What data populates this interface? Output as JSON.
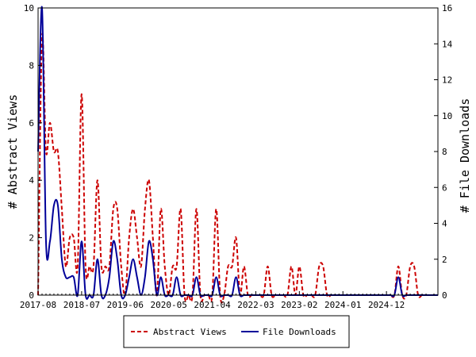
{
  "colors": {
    "background": "#ffffff",
    "axis": "#000000",
    "abstract_views": "#cc0000",
    "file_downloads": "#000099"
  },
  "chart_data": {
    "type": "line",
    "title": "",
    "xlabel": "",
    "ylabel_left": "# Abstract Views",
    "ylabel_right": "# File Downloads",
    "x_ticks": [
      "2017-08",
      "2018-07",
      "2019-06",
      "2020-05",
      "2021-04",
      "2022-03",
      "2023-02",
      "2024-01",
      "2024-12"
    ],
    "x_start": "2017-08",
    "months_per_tick": 11,
    "x_range_months": 101,
    "y_left_ticks": [
      "0",
      "2",
      "4",
      "6",
      "8",
      "10"
    ],
    "y_right_ticks": [
      "0",
      "2",
      "4",
      "6",
      "8",
      "10",
      "12",
      "14",
      "16"
    ],
    "ylim_left": [
      0,
      10
    ],
    "ylim_right": [
      0,
      16
    ],
    "grid": false,
    "legend_position": "bottom-center",
    "series": [
      {
        "name": "Abstract Views",
        "axis": "left",
        "style": "dashed",
        "values": [
          0,
          9,
          5,
          6,
          5,
          5,
          3,
          1,
          2,
          2,
          1,
          7,
          1,
          1,
          1,
          4,
          1,
          1,
          1,
          3,
          3,
          1,
          0,
          2,
          3,
          2,
          1,
          3,
          4,
          2,
          0,
          3,
          1,
          0,
          1,
          1,
          3,
          0,
          0,
          0,
          3,
          0,
          0,
          0,
          0,
          3,
          0,
          0,
          1,
          1,
          2,
          0,
          1,
          0,
          0,
          0,
          0,
          0,
          1,
          0,
          0,
          0,
          0,
          0,
          1,
          0,
          1,
          0,
          0,
          0,
          0,
          1,
          1,
          0,
          0,
          0,
          0,
          0,
          0,
          0,
          0,
          0,
          0,
          0,
          0,
          0,
          0,
          0,
          0,
          0,
          0,
          1,
          0,
          0,
          1,
          1,
          0,
          0,
          0,
          0,
          0,
          0
        ]
      },
      {
        "name": "File Downloads",
        "axis": "right",
        "style": "solid",
        "values": [
          8,
          16,
          3,
          3,
          5,
          5,
          2,
          1,
          1,
          1,
          0,
          3,
          0,
          0,
          0,
          2,
          0,
          0,
          1,
          3,
          2,
          0,
          0,
          1,
          2,
          1,
          0,
          1,
          3,
          2,
          0,
          1,
          0,
          0,
          0,
          1,
          0,
          0,
          0,
          0,
          1,
          0,
          0,
          0,
          0,
          1,
          0,
          0,
          0,
          0,
          1,
          0,
          0,
          0,
          0,
          0,
          0,
          0,
          0,
          0,
          0,
          0,
          0,
          0,
          0,
          0,
          0,
          0,
          0,
          0,
          0,
          0,
          0,
          0,
          0,
          0,
          0,
          0,
          0,
          0,
          0,
          0,
          0,
          0,
          0,
          0,
          0,
          0,
          0,
          0,
          0,
          1,
          0,
          0,
          0,
          0,
          0,
          0,
          0,
          0,
          0,
          0
        ]
      }
    ]
  }
}
